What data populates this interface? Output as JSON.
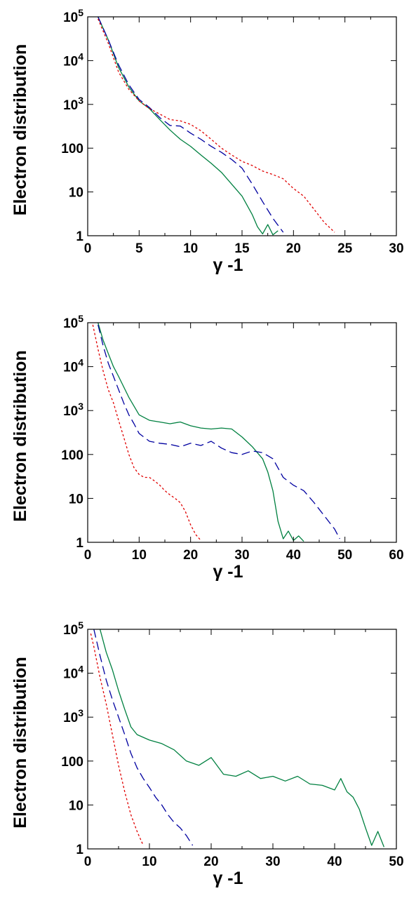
{
  "chart_data": [
    {
      "type": "line",
      "xlabel": "γ -1",
      "ylabel": "Electron distribution",
      "xlim": [
        0,
        30
      ],
      "ylim": [
        1,
        100000
      ],
      "yscale": "log",
      "x_ticks": [
        0,
        5,
        10,
        15,
        20,
        25,
        30
      ],
      "y_ticks": [
        {
          "value": 1,
          "label": "1"
        },
        {
          "value": 10,
          "label": "10"
        },
        {
          "value": 100,
          "label": "100"
        },
        {
          "value": 1000,
          "label": "10^3"
        },
        {
          "value": 10000,
          "label": "10^4"
        },
        {
          "value": 100000,
          "label": "10^5"
        }
      ],
      "grid": false,
      "series": [
        {
          "color": "#008040",
          "dash": "solid",
          "x": [
            1,
            2,
            3,
            4,
            5,
            6,
            7,
            8,
            9,
            10,
            11,
            12,
            13,
            14,
            15,
            16,
            16.5,
            17,
            17.5,
            18,
            18.5
          ],
          "y": [
            100000,
            30000,
            7000,
            2500,
            1200,
            800,
            450,
            260,
            160,
            110,
            70,
            45,
            28,
            15,
            8,
            3,
            1.6,
            1.1,
            1.8,
            1.05,
            1.3
          ]
        },
        {
          "color": "#0000a0",
          "dash": "dash",
          "x": [
            1,
            2,
            3,
            4,
            5,
            6,
            7,
            8,
            9,
            10,
            11,
            12,
            13,
            14,
            15,
            16,
            17,
            18,
            19
          ],
          "y": [
            100000,
            30000,
            8000,
            2800,
            1300,
            850,
            500,
            330,
            320,
            220,
            160,
            110,
            80,
            55,
            35,
            15,
            6,
            2.5,
            1.2
          ]
        },
        {
          "color": "#e00000",
          "dash": "dot",
          "x": [
            1,
            2,
            3,
            4,
            5,
            6,
            7,
            8,
            9,
            10,
            11,
            12,
            13,
            14,
            15,
            16,
            17,
            18,
            19,
            20,
            21,
            22,
            23,
            24
          ],
          "y": [
            90000,
            25000,
            5500,
            2200,
            1200,
            800,
            600,
            450,
            420,
            350,
            250,
            160,
            100,
            70,
            50,
            40,
            30,
            25,
            20,
            12,
            8,
            4,
            2,
            1.2
          ]
        }
      ]
    },
    {
      "type": "line",
      "xlabel": "γ -1",
      "ylabel": "Electron distribution",
      "xlim": [
        0,
        60
      ],
      "ylim": [
        1,
        100000
      ],
      "yscale": "log",
      "x_ticks": [
        0,
        10,
        20,
        30,
        40,
        50,
        60
      ],
      "y_ticks": [
        {
          "value": 1,
          "label": "1"
        },
        {
          "value": 10,
          "label": "10"
        },
        {
          "value": 100,
          "label": "100"
        },
        {
          "value": 1000,
          "label": "10^3"
        },
        {
          "value": 10000,
          "label": "10^4"
        },
        {
          "value": 100000,
          "label": "10^5"
        }
      ],
      "grid": false,
      "series": [
        {
          "color": "#008040",
          "dash": "solid",
          "x": [
            2,
            3,
            4,
            5,
            6,
            8,
            10,
            12,
            14,
            16,
            18,
            20,
            22,
            24,
            26,
            28,
            30,
            32,
            34,
            35,
            36,
            37,
            38,
            39,
            40,
            41,
            42
          ],
          "y": [
            100000,
            40000,
            20000,
            10000,
            6000,
            2000,
            800,
            600,
            550,
            500,
            550,
            450,
            400,
            380,
            400,
            380,
            250,
            150,
            80,
            40,
            15,
            3,
            1.2,
            1.8,
            1.1,
            1.4,
            1.05
          ]
        },
        {
          "color": "#0000a0",
          "dash": "dash",
          "x": [
            2,
            3,
            4,
            5,
            6,
            7,
            8,
            9,
            10,
            12,
            14,
            16,
            18,
            20,
            22,
            24,
            26,
            28,
            30,
            32,
            34,
            36,
            38,
            40,
            42,
            44,
            46,
            48,
            49
          ],
          "y": [
            90000,
            30000,
            12000,
            6000,
            3000,
            1500,
            800,
            500,
            300,
            200,
            180,
            170,
            150,
            180,
            160,
            200,
            140,
            110,
            100,
            120,
            110,
            80,
            30,
            20,
            15,
            8,
            4,
            2,
            1.2
          ]
        },
        {
          "color": "#e00000",
          "dash": "dot",
          "x": [
            1,
            2,
            3,
            4,
            5,
            6,
            7,
            8,
            9,
            10,
            11,
            12,
            13,
            14,
            15,
            16,
            17,
            18,
            19,
            20,
            21,
            22
          ],
          "y": [
            90000,
            25000,
            8000,
            3000,
            1500,
            600,
            250,
            100,
            50,
            35,
            30,
            30,
            25,
            20,
            15,
            12,
            10,
            8,
            5,
            2.5,
            1.5,
            1.1
          ]
        }
      ]
    },
    {
      "type": "line",
      "xlabel": "γ -1",
      "ylabel": "Electron distribution",
      "xlim": [
        0,
        50
      ],
      "ylim": [
        1,
        100000
      ],
      "yscale": "log",
      "x_ticks": [
        0,
        10,
        20,
        30,
        40,
        50
      ],
      "y_ticks": [
        {
          "value": 1,
          "label": "1"
        },
        {
          "value": 10,
          "label": "10"
        },
        {
          "value": 100,
          "label": "100"
        },
        {
          "value": 1000,
          "label": "10^3"
        },
        {
          "value": 10000,
          "label": "10^4"
        },
        {
          "value": 100000,
          "label": "10^5"
        }
      ],
      "grid": false,
      "series": [
        {
          "color": "#008040",
          "dash": "solid",
          "x": [
            2,
            3,
            4,
            5,
            6,
            7,
            8,
            10,
            12,
            14,
            16,
            18,
            20,
            22,
            24,
            26,
            28,
            30,
            32,
            34,
            36,
            38,
            40,
            41,
            42,
            43,
            44,
            45,
            46,
            47,
            48
          ],
          "y": [
            100000,
            30000,
            12000,
            4000,
            1500,
            600,
            400,
            300,
            250,
            180,
            100,
            80,
            120,
            50,
            45,
            60,
            40,
            45,
            35,
            45,
            30,
            28,
            22,
            40,
            20,
            15,
            8,
            3,
            1.2,
            2.5,
            1.1
          ]
        },
        {
          "color": "#0000a0",
          "dash": "dash",
          "x": [
            1,
            2,
            3,
            4,
            5,
            6,
            7,
            8,
            9,
            10,
            11,
            12,
            13,
            14,
            15,
            16,
            17
          ],
          "y": [
            100000,
            25000,
            7000,
            2500,
            1000,
            400,
            150,
            70,
            40,
            25,
            15,
            10,
            6,
            4,
            3,
            2,
            1.2
          ]
        },
        {
          "color": "#e00000",
          "dash": "dot",
          "x": [
            0.5,
            1,
            2,
            3,
            4,
            5,
            6,
            7,
            8,
            9
          ],
          "y": [
            80000,
            40000,
            8000,
            2000,
            400,
            80,
            20,
            6,
            2.5,
            1.2
          ]
        }
      ]
    }
  ]
}
